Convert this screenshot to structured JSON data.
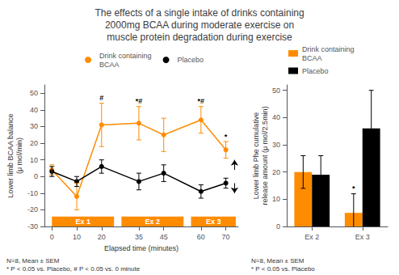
{
  "title": "The effects of a single intake of drinks containing\n2000mg BCAA during moderate exercise on\nmuscle protein degradation during exercise",
  "chart_data": [
    {
      "type": "line",
      "xlabel": "Elapsed time (minutes)",
      "ylabel": "Lower limb BCAA balance\n(μ mol/min)",
      "x": [
        0,
        10,
        20,
        35,
        45,
        60,
        70
      ],
      "xlim": [
        -3,
        75
      ],
      "xticks": [
        0,
        10,
        20,
        35,
        45,
        60,
        70
      ],
      "ylim": [
        -30,
        55
      ],
      "yticks": [
        -30,
        -20,
        -10,
        0,
        10,
        20,
        30,
        40,
        50
      ],
      "grid": false,
      "legend": "top",
      "series": [
        {
          "name": "Drink containing\nBCAA",
          "color": "#FF8C00",
          "marker": "circle",
          "values": [
            4,
            -12,
            31,
            32,
            25,
            34,
            16
          ],
          "errors": [
            3,
            8,
            13,
            10,
            10,
            8,
            5
          ]
        },
        {
          "name": "Placebo",
          "color": "#000000",
          "marker": "circle",
          "values": [
            3,
            -3,
            6,
            -3,
            2,
            -9,
            -4
          ],
          "errors": [
            3,
            3,
            4,
            5,
            5,
            4,
            3
          ]
        }
      ],
      "annotations": [
        {
          "series": "Drink containing\nBCAA",
          "x": 20,
          "text": "#"
        },
        {
          "series": "Drink containing\nBCAA",
          "x": 35,
          "text": "*#"
        },
        {
          "series": "Drink containing\nBCAA",
          "x": 60,
          "text": "*#"
        },
        {
          "series": "Drink containing\nBCAA",
          "x": 70,
          "text": "*"
        }
      ],
      "ex_boxes": [
        {
          "label": "Ex 1",
          "x0": 0,
          "x1": 25,
          "y0": -30,
          "y1": -24
        },
        {
          "label": "Ex 2",
          "x0": 28,
          "x1": 53,
          "y0": -30,
          "y1": -24
        },
        {
          "label": "Ex 3",
          "x0": 56,
          "x1": 74,
          "y0": -30,
          "y1": -24
        }
      ],
      "arrows": [
        {
          "x": 73.5,
          "from": 4,
          "to": 10
        },
        {
          "x": 73.5,
          "from": -4,
          "to": -10
        }
      ],
      "note": "N=8, Mean ± SEM\n* P < 0.05 vs. Placebo, # P < 0.05 vs. 0 minute"
    },
    {
      "type": "bar",
      "ylabel": "Lower limb Phe cumulative\nrelease amount (μ mol/2.5min)",
      "categories": [
        "Ex 2",
        "Ex 3"
      ],
      "ylim": [
        0,
        52
      ],
      "yticks": [
        0,
        10,
        20,
        30,
        40,
        50
      ],
      "grid": false,
      "legend": "top",
      "series": [
        {
          "name": "Drink containing\nBCAA",
          "color": "#FF8C00",
          "values": [
            20,
            5
          ],
          "errors": [
            6,
            7
          ]
        },
        {
          "name": "Placebo",
          "color": "#000000",
          "values": [
            19,
            36
          ],
          "errors": [
            7,
            14
          ]
        }
      ],
      "annotations": [
        {
          "series": "Drink containing\nBCAA",
          "category": "Ex 3",
          "text": "*"
        }
      ],
      "note": "N=8, Mean ± SEM\n* P < 0.05 vs. Placebo"
    }
  ]
}
